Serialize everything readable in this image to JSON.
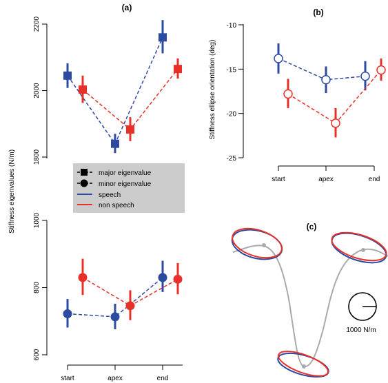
{
  "colors": {
    "speech": "#2b4aa0",
    "non_speech": "#e8302a",
    "trajectory": "#aaaaaa",
    "legend_bg": "#cccccc"
  },
  "chart_data": [
    {
      "panel": "(a)",
      "type": "scatter",
      "title": "(a)",
      "ylabel": "Stiffness eigenvalues (N/m)",
      "categories": [
        "start",
        "apex",
        "end"
      ],
      "axis_break": true,
      "upper_segment": {
        "ylim": [
          1800,
          2200
        ],
        "ticks": [
          1800,
          2000,
          2200
        ],
        "series": [
          {
            "group": "speech",
            "eigen": "major",
            "marker": "square",
            "values": [
              2045,
              1840,
              2160
            ],
            "err_lo": [
              2008,
              1812,
              2112
            ],
            "err_hi": [
              2082,
              1870,
              2212
            ]
          },
          {
            "group": "non_speech",
            "eigen": "major",
            "marker": "square",
            "values": [
              2003,
              1883,
              2065
            ],
            "err_lo": [
              1963,
              1848,
              2036
            ],
            "err_hi": [
              2045,
              1920,
              2097
            ]
          }
        ]
      },
      "lower_segment": {
        "ylim": [
          600,
          1000
        ],
        "ticks": [
          600,
          800,
          1000
        ],
        "series": [
          {
            "group": "speech",
            "eigen": "minor",
            "marker": "circle",
            "values": [
              722,
              713,
              830
            ],
            "err_lo": [
              681,
              676,
              787
            ],
            "err_hi": [
              766,
              752,
              880
            ]
          },
          {
            "group": "non_speech",
            "eigen": "minor",
            "marker": "circle",
            "values": [
              830,
              746,
              825
            ],
            "err_lo": [
              778,
              703,
              780
            ],
            "err_hi": [
              886,
              792,
              873
            ]
          }
        ]
      },
      "legend": {
        "entries": [
          {
            "label": "major eigenvalue",
            "kind": "square"
          },
          {
            "label": "minor eigenvalue",
            "kind": "circle"
          },
          {
            "label": "speech",
            "kind": "line-speech"
          },
          {
            "label": "non speech",
            "kind": "line-non-speech"
          }
        ]
      }
    },
    {
      "panel": "(b)",
      "type": "scatter",
      "title": "(b)",
      "ylabel": "Stiffness ellipse orientation (deg)",
      "categories": [
        "start",
        "apex",
        "end"
      ],
      "ylim": [
        -25,
        -10
      ],
      "ticks": [
        -25,
        -20,
        -15,
        -10
      ],
      "series": [
        {
          "group": "speech",
          "marker": "open-circle",
          "values": [
            -13.8,
            -16.2,
            -15.8
          ],
          "err_lo": [
            -15.5,
            -17.7,
            -17.4
          ],
          "err_hi": [
            -12.1,
            -14.7,
            -14.1
          ]
        },
        {
          "group": "non_speech",
          "marker": "open-circle",
          "values": [
            -17.8,
            -21.1,
            -15.1
          ],
          "err_lo": [
            -19.4,
            -22.7,
            -16.3
          ],
          "err_hi": [
            -16.1,
            -19.4,
            -13.8
          ]
        }
      ]
    },
    {
      "panel": "(c)",
      "type": "diagram",
      "title": "(c)",
      "scale_label": "1000 N/m"
    }
  ]
}
